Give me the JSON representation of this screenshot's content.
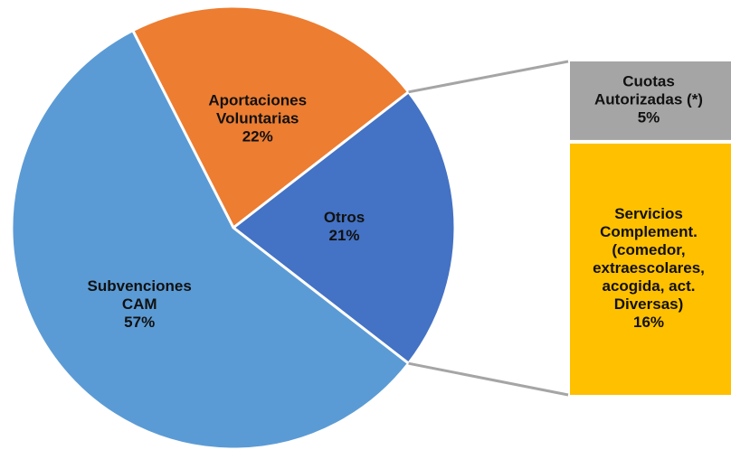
{
  "chart_data": {
    "type": "pie-of-bar",
    "categories": [
      "Aportaciones\nVoluntarias",
      "Otros",
      "Subvenciones\nCAM"
    ],
    "values": [
      22,
      21,
      57
    ],
    "value_labels": [
      "22%",
      "21%",
      "57%"
    ],
    "colors": [
      "#ed7d31",
      "#4472c4",
      "#5b9bd5"
    ],
    "breakdown": {
      "categories": [
        "Cuotas\nAutorizadas (*)",
        "Servicios\nComplement.\n(comedor,\nextraescolares,\nacogida, act.\nDiversas)"
      ],
      "values": [
        5,
        16
      ],
      "value_labels": [
        "5%",
        "16%"
      ],
      "colors": [
        "#a5a5a5",
        "#ffc000"
      ]
    }
  }
}
